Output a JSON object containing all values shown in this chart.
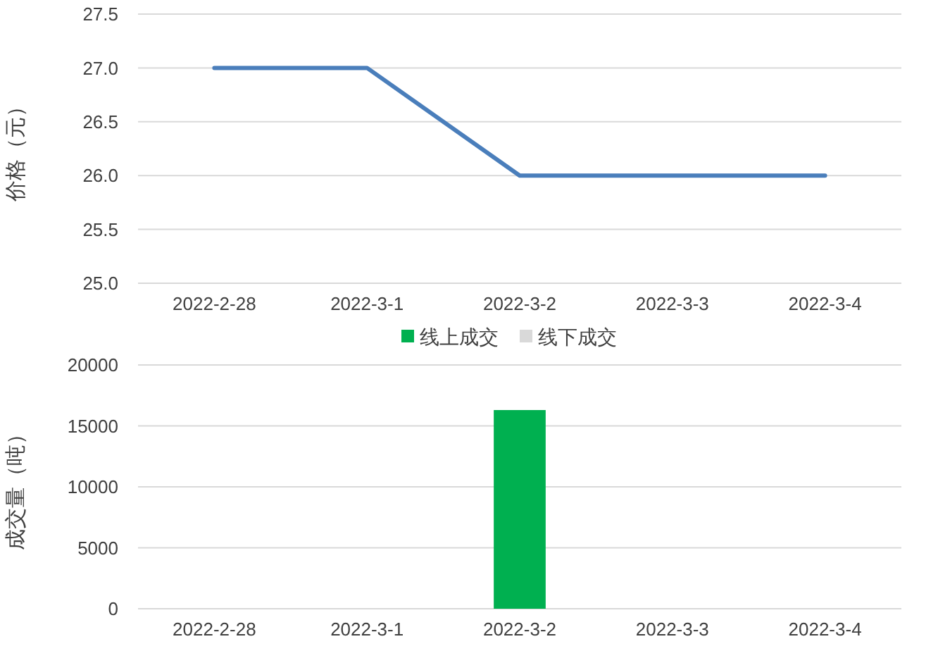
{
  "chart_data": [
    {
      "type": "line",
      "ylabel": "价格（元）",
      "categories": [
        "2022-2-28",
        "2022-3-1",
        "2022-3-2",
        "2022-3-3",
        "2022-3-4"
      ],
      "series": [
        {
          "color": "#4a7ebb",
          "values": [
            27,
            27,
            26,
            26,
            26
          ]
        }
      ],
      "ylim": [
        25,
        27.5
      ],
      "yticks": [
        {
          "value": 25,
          "label": "25.0"
        },
        {
          "value": 25.5,
          "label": "25.5"
        },
        {
          "value": 26,
          "label": "26.0"
        },
        {
          "value": 26.5,
          "label": "26.5"
        },
        {
          "value": 27,
          "label": "27.0"
        },
        {
          "value": 27.5,
          "label": "27.5"
        }
      ],
      "grid": "y",
      "marker": "none",
      "line_style": "solid"
    },
    {
      "type": "bar",
      "stacked": true,
      "ylabel": "成交量（吨）",
      "categories": [
        "2022-2-28",
        "2022-3-1",
        "2022-3-2",
        "2022-3-3",
        "2022-3-4"
      ],
      "series": [
        {
          "name": "线上成交",
          "color": "#00b050",
          "values": [
            0,
            0,
            16300,
            0,
            0
          ]
        },
        {
          "name": "线下成交",
          "color": "#d9d9d9",
          "values": [
            0,
            0,
            0,
            0,
            0
          ]
        }
      ],
      "ylim": [
        0,
        20000
      ],
      "yticks": [
        0,
        5000,
        10000,
        15000,
        20000
      ],
      "grid": "y",
      "legend": "top"
    }
  ]
}
